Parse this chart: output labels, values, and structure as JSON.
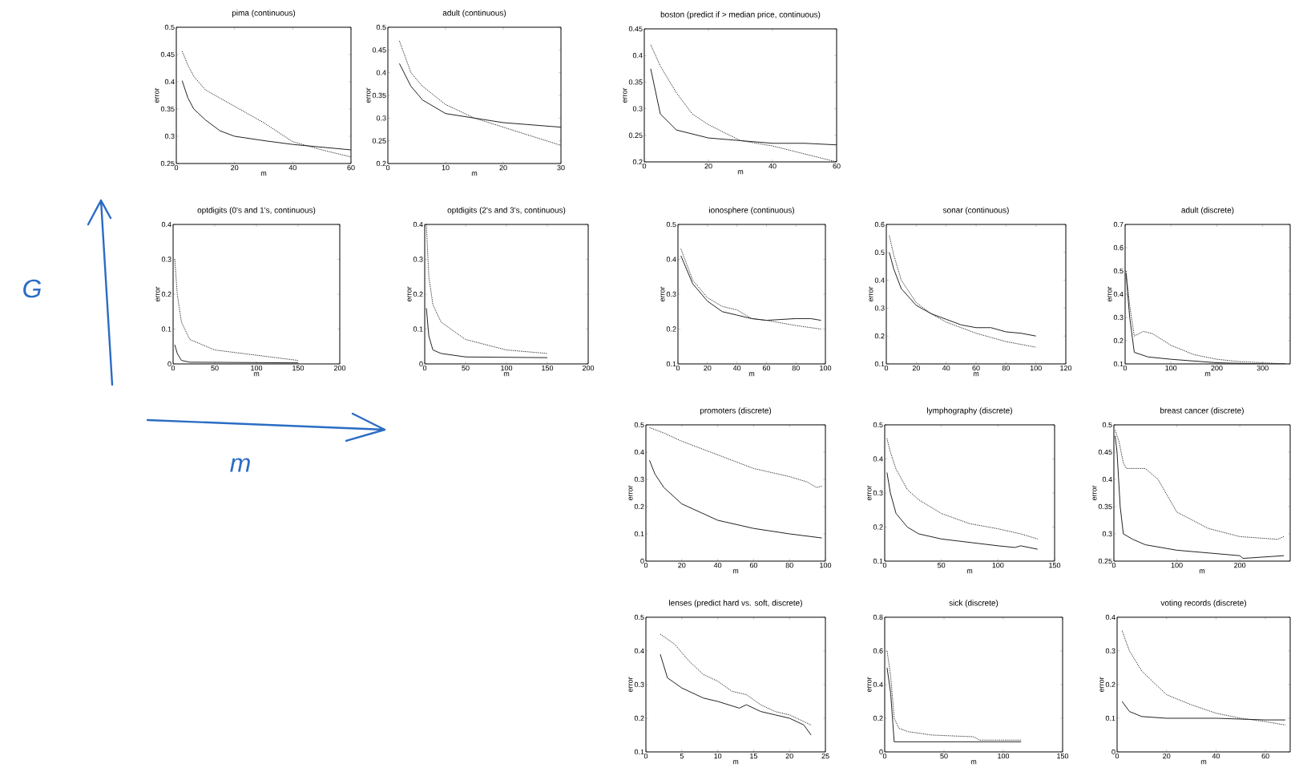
{
  "chart_data": [
    {
      "type": "line",
      "title": "pima (continuous)",
      "xlabel": "m",
      "ylabel": "error",
      "xlim": [
        0,
        60
      ],
      "ylim": [
        0.25,
        0.5
      ],
      "xticks": [
        0,
        20,
        40,
        60
      ],
      "yticks": [
        0.25,
        0.3,
        0.35,
        0.4,
        0.45,
        0.5
      ],
      "series": [
        {
          "color": "#222222",
          "line_style": "solid",
          "x": [
            2,
            4,
            6,
            10,
            15,
            20,
            30,
            40,
            50,
            60
          ],
          "values": [
            0.402,
            0.37,
            0.35,
            0.33,
            0.31,
            0.3,
            0.292,
            0.285,
            0.28,
            0.275
          ]
        },
        {
          "color": "#222222",
          "line_style": "dotted",
          "x": [
            2,
            4,
            6,
            10,
            15,
            20,
            30,
            40,
            50,
            60
          ],
          "values": [
            0.456,
            0.43,
            0.41,
            0.385,
            0.37,
            0.355,
            0.325,
            0.29,
            0.275,
            0.262
          ]
        }
      ]
    },
    {
      "type": "line",
      "title": "adult (continuous)",
      "xlabel": "m",
      "ylabel": "error",
      "xlim": [
        0,
        30
      ],
      "ylim": [
        0.2,
        0.5
      ],
      "xticks": [
        0,
        10,
        20,
        30
      ],
      "yticks": [
        0.2,
        0.25,
        0.3,
        0.35,
        0.4,
        0.45,
        0.5
      ],
      "series": [
        {
          "color": "#222222",
          "line_style": "solid",
          "x": [
            2,
            4,
            6,
            10,
            15,
            20,
            25,
            30
          ],
          "values": [
            0.42,
            0.37,
            0.34,
            0.31,
            0.3,
            0.29,
            0.285,
            0.28
          ]
        },
        {
          "color": "#222222",
          "line_style": "dotted",
          "x": [
            2,
            4,
            6,
            10,
            15,
            20,
            25,
            30
          ],
          "values": [
            0.47,
            0.4,
            0.37,
            0.33,
            0.3,
            0.28,
            0.26,
            0.24
          ]
        }
      ]
    },
    {
      "type": "line",
      "title": "boston (predict if > median price, continuous)",
      "xlabel": "m",
      "ylabel": "error",
      "xlim": [
        0,
        60
      ],
      "ylim": [
        0.2,
        0.45
      ],
      "xticks": [
        0,
        20,
        40,
        60
      ],
      "yticks": [
        0.2,
        0.25,
        0.3,
        0.35,
        0.4,
        0.45
      ],
      "series": [
        {
          "color": "#222222",
          "line_style": "solid",
          "x": [
            2,
            5,
            10,
            20,
            30,
            40,
            50,
            60
          ],
          "values": [
            0.375,
            0.29,
            0.26,
            0.245,
            0.24,
            0.235,
            0.235,
            0.232
          ]
        },
        {
          "color": "#222222",
          "line_style": "dotted",
          "x": [
            2,
            5,
            10,
            15,
            20,
            30,
            40,
            50,
            60
          ],
          "values": [
            0.42,
            0.38,
            0.33,
            0.29,
            0.27,
            0.24,
            0.23,
            0.215,
            0.2
          ]
        }
      ]
    },
    {
      "type": "line",
      "title": "optdigits (0's and 1's, continuous)",
      "xlabel": "m",
      "ylabel": "error",
      "xlim": [
        0,
        200
      ],
      "ylim": [
        0,
        0.4
      ],
      "xticks": [
        0,
        50,
        100,
        150,
        200
      ],
      "yticks": [
        0,
        0.1,
        0.2,
        0.3,
        0.4
      ],
      "series": [
        {
          "color": "#222222",
          "line_style": "solid",
          "x": [
            2,
            5,
            10,
            20,
            150
          ],
          "values": [
            0.055,
            0.03,
            0.01,
            0.005,
            0.003
          ]
        },
        {
          "color": "#222222",
          "line_style": "dotted",
          "x": [
            2,
            5,
            10,
            20,
            50,
            100,
            150
          ],
          "values": [
            0.3,
            0.2,
            0.12,
            0.07,
            0.04,
            0.025,
            0.01
          ]
        }
      ]
    },
    {
      "type": "line",
      "title": "optdigits (2's and 3's, continuous)",
      "xlabel": "m",
      "ylabel": "error",
      "xlim": [
        0,
        200
      ],
      "ylim": [
        0,
        0.4
      ],
      "xticks": [
        0,
        50,
        100,
        150,
        200
      ],
      "yticks": [
        0,
        0.1,
        0.2,
        0.3,
        0.4
      ],
      "series": [
        {
          "color": "#222222",
          "line_style": "solid",
          "x": [
            2,
            5,
            10,
            20,
            50,
            150
          ],
          "values": [
            0.16,
            0.08,
            0.04,
            0.03,
            0.02,
            0.018
          ]
        },
        {
          "color": "#222222",
          "line_style": "dotted",
          "x": [
            2,
            5,
            10,
            20,
            50,
            100,
            150
          ],
          "values": [
            0.4,
            0.25,
            0.17,
            0.12,
            0.07,
            0.04,
            0.03
          ]
        }
      ]
    },
    {
      "type": "line",
      "title": "ionosphere (continuous)",
      "xlabel": "m",
      "ylabel": "error",
      "xlim": [
        0,
        100
      ],
      "ylim": [
        0.1,
        0.5
      ],
      "xticks": [
        0,
        20,
        40,
        60,
        80,
        100
      ],
      "yticks": [
        0.1,
        0.2,
        0.3,
        0.4,
        0.5
      ],
      "series": [
        {
          "color": "#222222",
          "line_style": "solid",
          "x": [
            2,
            10,
            20,
            30,
            40,
            50,
            60,
            80,
            90,
            97
          ],
          "values": [
            0.41,
            0.33,
            0.28,
            0.25,
            0.24,
            0.23,
            0.225,
            0.23,
            0.23,
            0.225
          ]
        },
        {
          "color": "#222222",
          "line_style": "dotted",
          "x": [
            2,
            10,
            20,
            30,
            40,
            50,
            60,
            80,
            97
          ],
          "values": [
            0.43,
            0.34,
            0.29,
            0.265,
            0.255,
            0.23,
            0.225,
            0.21,
            0.2
          ]
        }
      ]
    },
    {
      "type": "line",
      "title": "sonar (continuous)",
      "xlabel": "m",
      "ylabel": "error",
      "xlim": [
        0,
        120
      ],
      "ylim": [
        0.1,
        0.6
      ],
      "xticks": [
        0,
        20,
        40,
        60,
        80,
        100,
        120
      ],
      "yticks": [
        0.1,
        0.2,
        0.3,
        0.4,
        0.5,
        0.6
      ],
      "series": [
        {
          "color": "#222222",
          "line_style": "solid",
          "x": [
            2,
            5,
            10,
            20,
            30,
            40,
            50,
            60,
            70,
            80,
            90,
            100
          ],
          "values": [
            0.5,
            0.44,
            0.37,
            0.31,
            0.28,
            0.26,
            0.24,
            0.23,
            0.23,
            0.215,
            0.21,
            0.2
          ]
        },
        {
          "color": "#222222",
          "line_style": "dotted",
          "x": [
            2,
            5,
            10,
            20,
            30,
            40,
            50,
            60,
            70,
            80,
            90,
            100
          ],
          "values": [
            0.56,
            0.49,
            0.4,
            0.32,
            0.28,
            0.25,
            0.23,
            0.21,
            0.195,
            0.18,
            0.17,
            0.16
          ]
        }
      ]
    },
    {
      "type": "line",
      "title": "adult (discrete)",
      "xlabel": "m",
      "ylabel": "error",
      "xlim": [
        0,
        360
      ],
      "ylim": [
        0.1,
        0.7
      ],
      "xticks": [
        0,
        100,
        200,
        300
      ],
      "yticks": [
        0.1,
        0.2,
        0.3,
        0.4,
        0.5,
        0.6,
        0.7
      ],
      "series": [
        {
          "color": "#222222",
          "line_style": "solid",
          "x": [
            2,
            10,
            20,
            50,
            100,
            200,
            300,
            350
          ],
          "values": [
            0.49,
            0.3,
            0.15,
            0.13,
            0.12,
            0.105,
            0.1,
            0.1
          ]
        },
        {
          "color": "#222222",
          "line_style": "dotted",
          "x": [
            2,
            10,
            20,
            40,
            60,
            100,
            150,
            200,
            250,
            300,
            350
          ],
          "values": [
            0.5,
            0.35,
            0.22,
            0.24,
            0.23,
            0.18,
            0.14,
            0.12,
            0.11,
            0.105,
            0.1
          ]
        }
      ]
    },
    {
      "type": "line",
      "title": "promoters (discrete)",
      "xlabel": "m",
      "ylabel": "error",
      "xlim": [
        0,
        100
      ],
      "ylim": [
        0,
        0.5
      ],
      "xticks": [
        0,
        20,
        40,
        60,
        80,
        100
      ],
      "yticks": [
        0,
        0.1,
        0.2,
        0.3,
        0.4,
        0.5
      ],
      "series": [
        {
          "color": "#222222",
          "line_style": "solid",
          "x": [
            2,
            5,
            10,
            20,
            40,
            60,
            80,
            98
          ],
          "values": [
            0.37,
            0.32,
            0.27,
            0.21,
            0.15,
            0.12,
            0.1,
            0.085
          ]
        },
        {
          "color": "#222222",
          "line_style": "dotted",
          "x": [
            2,
            10,
            20,
            40,
            60,
            80,
            90,
            95,
            98
          ],
          "values": [
            0.49,
            0.47,
            0.44,
            0.39,
            0.34,
            0.31,
            0.29,
            0.27,
            0.275
          ]
        }
      ]
    },
    {
      "type": "line",
      "title": "lymphography (discrete)",
      "xlabel": "m",
      "ylabel": "error",
      "xlim": [
        0,
        150
      ],
      "ylim": [
        0.1,
        0.5
      ],
      "xticks": [
        0,
        50,
        100,
        150
      ],
      "yticks": [
        0.1,
        0.2,
        0.3,
        0.4,
        0.5
      ],
      "series": [
        {
          "color": "#222222",
          "line_style": "solid",
          "x": [
            2,
            5,
            10,
            20,
            30,
            50,
            75,
            100,
            115,
            120,
            135
          ],
          "values": [
            0.36,
            0.3,
            0.24,
            0.2,
            0.18,
            0.165,
            0.155,
            0.145,
            0.14,
            0.145,
            0.135
          ]
        },
        {
          "color": "#222222",
          "line_style": "dotted",
          "x": [
            2,
            5,
            10,
            20,
            30,
            50,
            75,
            100,
            120,
            135
          ],
          "values": [
            0.46,
            0.42,
            0.37,
            0.31,
            0.28,
            0.24,
            0.21,
            0.195,
            0.18,
            0.165
          ]
        }
      ]
    },
    {
      "type": "line",
      "title": "breast cancer (discrete)",
      "xlabel": "m",
      "ylabel": "error",
      "xlim": [
        0,
        280
      ],
      "ylim": [
        0.25,
        0.5
      ],
      "xticks": [
        0,
        100,
        200
      ],
      "yticks": [
        0.25,
        0.3,
        0.35,
        0.4,
        0.45,
        0.5
      ],
      "series": [
        {
          "color": "#222222",
          "line_style": "solid",
          "x": [
            2,
            5,
            10,
            15,
            30,
            50,
            100,
            150,
            200,
            205,
            270
          ],
          "values": [
            0.48,
            0.45,
            0.35,
            0.3,
            0.29,
            0.28,
            0.27,
            0.265,
            0.26,
            0.255,
            0.26
          ]
        },
        {
          "color": "#222222",
          "line_style": "dotted",
          "x": [
            2,
            8,
            15,
            20,
            50,
            70,
            100,
            150,
            200,
            260,
            270
          ],
          "values": [
            0.49,
            0.47,
            0.43,
            0.42,
            0.42,
            0.4,
            0.34,
            0.31,
            0.295,
            0.29,
            0.295
          ]
        }
      ]
    },
    {
      "type": "line",
      "title": "lenses (predict hard vs. soft, discrete)",
      "xlabel": "m",
      "ylabel": "error",
      "xlim": [
        0,
        25
      ],
      "ylim": [
        0.1,
        0.5
      ],
      "xticks": [
        0,
        5,
        10,
        15,
        20,
        25
      ],
      "yticks": [
        0.1,
        0.2,
        0.3,
        0.4,
        0.5
      ],
      "series": [
        {
          "color": "#222222",
          "line_style": "solid",
          "x": [
            2,
            3,
            5,
            8,
            10,
            13,
            14,
            16,
            18,
            20,
            22,
            23
          ],
          "values": [
            0.39,
            0.32,
            0.29,
            0.26,
            0.25,
            0.23,
            0.24,
            0.22,
            0.21,
            0.2,
            0.18,
            0.15
          ]
        },
        {
          "color": "#222222",
          "line_style": "dotted",
          "x": [
            2,
            4,
            6,
            8,
            10,
            12,
            14,
            16,
            18,
            20,
            22,
            23
          ],
          "values": [
            0.45,
            0.42,
            0.37,
            0.33,
            0.31,
            0.28,
            0.27,
            0.24,
            0.22,
            0.21,
            0.19,
            0.18
          ]
        }
      ]
    },
    {
      "type": "line",
      "title": "sick (discrete)",
      "xlabel": "m",
      "ylabel": "error",
      "xlim": [
        0,
        150
      ],
      "ylim": [
        0,
        0.8
      ],
      "xticks": [
        0,
        50,
        100,
        150
      ],
      "yticks": [
        0,
        0.2,
        0.4,
        0.6,
        0.8
      ],
      "series": [
        {
          "color": "#222222",
          "line_style": "solid",
          "x": [
            2,
            5,
            8,
            115
          ],
          "values": [
            0.5,
            0.35,
            0.06,
            0.06
          ]
        },
        {
          "color": "#222222",
          "line_style": "dotted",
          "x": [
            2,
            5,
            8,
            12,
            20,
            40,
            75,
            80,
            115
          ],
          "values": [
            0.6,
            0.45,
            0.2,
            0.14,
            0.12,
            0.1,
            0.09,
            0.07,
            0.07
          ]
        }
      ]
    },
    {
      "type": "line",
      "title": "voting records (discrete)",
      "xlabel": "m",
      "ylabel": "error",
      "xlim": [
        0,
        70
      ],
      "ylim": [
        0,
        0.4
      ],
      "xticks": [
        0,
        20,
        40,
        60
      ],
      "yticks": [
        0,
        0.1,
        0.2,
        0.3,
        0.4
      ],
      "series": [
        {
          "color": "#222222",
          "line_style": "solid",
          "x": [
            2,
            5,
            10,
            20,
            40,
            60,
            68
          ],
          "values": [
            0.15,
            0.12,
            0.105,
            0.1,
            0.1,
            0.095,
            0.095
          ]
        },
        {
          "color": "#222222",
          "line_style": "dotted",
          "x": [
            2,
            5,
            10,
            20,
            30,
            40,
            50,
            60,
            68
          ],
          "values": [
            0.36,
            0.3,
            0.24,
            0.17,
            0.14,
            0.115,
            0.1,
            0.09,
            0.08
          ]
        }
      ]
    },
    {
      "type": "other",
      "annotations": [
        "G",
        "m"
      ]
    }
  ]
}
